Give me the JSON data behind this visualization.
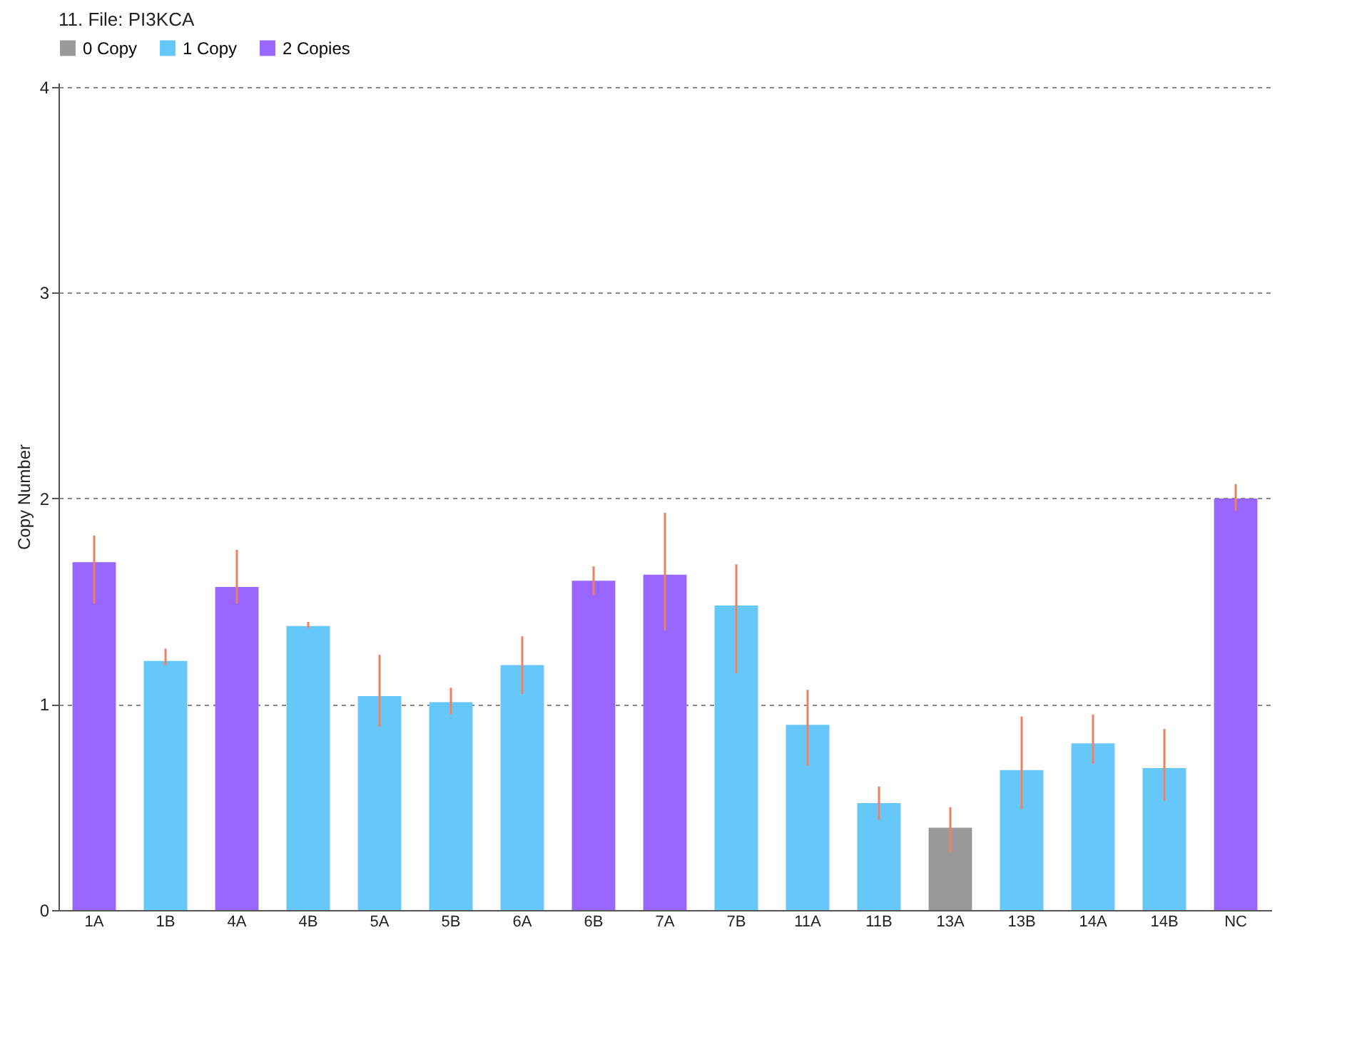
{
  "chart_data": {
    "type": "bar",
    "title": "11.  File: PI3KCA",
    "ylabel": "Copy Number",
    "categories": [
      "1A",
      "1B",
      "4A",
      "4B",
      "5A",
      "5B",
      "6A",
      "6B",
      "7A",
      "7B",
      "11A",
      "11B",
      "13A",
      "13B",
      "14A",
      "14B",
      "NC"
    ],
    "series": [
      {
        "name": "0 Copy",
        "color": "#999999",
        "values": [
          null,
          null,
          null,
          null,
          null,
          null,
          null,
          null,
          null,
          null,
          null,
          null,
          0.4,
          null,
          null,
          null,
          null
        ],
        "errors": [
          null,
          null,
          null,
          null,
          null,
          null,
          null,
          null,
          null,
          null,
          null,
          null,
          [
            0.28,
            0.5
          ],
          null,
          null,
          null,
          null
        ]
      },
      {
        "name": "1 Copy",
        "color": "#66c8fa",
        "values": [
          null,
          1.21,
          null,
          1.38,
          1.04,
          1.01,
          1.19,
          null,
          null,
          1.48,
          0.9,
          0.52,
          null,
          0.68,
          0.81,
          0.69,
          null
        ],
        "errors": [
          null,
          [
            1.19,
            1.27
          ],
          null,
          [
            1.37,
            1.4
          ],
          [
            0.89,
            1.24
          ],
          [
            0.95,
            1.08
          ],
          [
            1.05,
            1.33
          ],
          null,
          null,
          [
            1.15,
            1.68
          ],
          [
            0.7,
            1.07
          ],
          [
            0.44,
            0.6
          ],
          null,
          [
            0.49,
            0.94
          ],
          [
            0.71,
            0.95
          ],
          [
            0.53,
            0.88
          ],
          null
        ]
      },
      {
        "name": "2 Copies",
        "color": "#9966ff",
        "values": [
          1.69,
          null,
          1.57,
          null,
          null,
          null,
          null,
          1.6,
          1.63,
          null,
          null,
          null,
          null,
          null,
          null,
          null,
          2.0
        ],
        "errors": [
          [
            1.49,
            1.82
          ],
          null,
          [
            1.49,
            1.75
          ],
          null,
          null,
          null,
          null,
          [
            1.53,
            1.67
          ],
          [
            1.36,
            1.93
          ],
          null,
          null,
          null,
          null,
          null,
          null,
          null,
          [
            1.94,
            2.07
          ]
        ]
      }
    ],
    "ylim": [
      0,
      4.02
    ],
    "yticks": [
      0,
      1,
      2,
      3,
      4
    ],
    "grid": "y",
    "legend": "top left"
  }
}
